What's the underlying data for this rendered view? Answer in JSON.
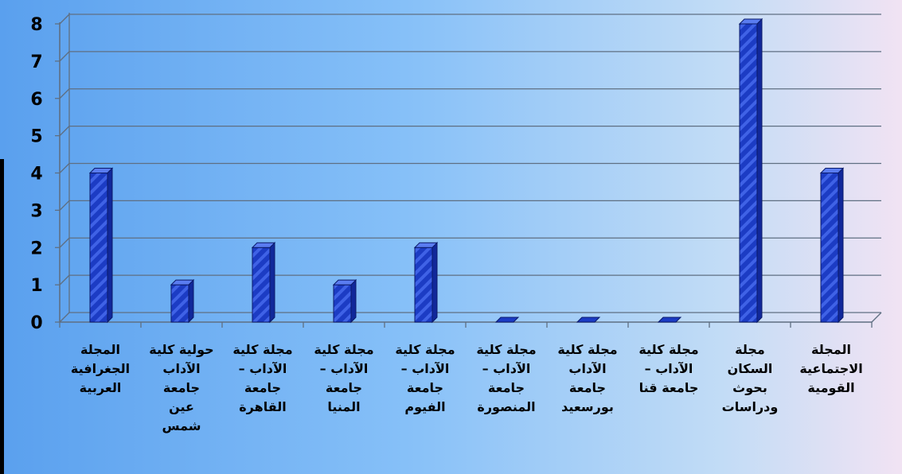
{
  "chart_data": {
    "type": "bar",
    "categories": [
      [
        "المجلة",
        "الجغرافية",
        "العربية"
      ],
      [
        "حولية كلية",
        "الآداب",
        "جامعة",
        "عين",
        "شمس"
      ],
      [
        "مجلة كلية",
        "الآداب –",
        "جامعة",
        "القاهرة"
      ],
      [
        "مجلة كلية",
        "الآداب –",
        "جامعة",
        "المنيا"
      ],
      [
        "مجلة كلية",
        "الآداب –",
        "جامعة",
        "الفيوم"
      ],
      [
        "مجلة كلية",
        "الآداب –",
        "جامعة",
        "المنصورة"
      ],
      [
        "مجلة كلية",
        "الآداب",
        "جامعة",
        "بورسعيد"
      ],
      [
        "مجلة كلية",
        "الآداب –",
        "جامعة قنا"
      ],
      [
        "مجلة",
        "السكان",
        "بحوث",
        "ودراسات"
      ],
      [
        "المجلة",
        "الاجتماعية",
        "القومية"
      ]
    ],
    "values": [
      4,
      1,
      2,
      1,
      2,
      0,
      0,
      0,
      8,
      4
    ],
    "yticks": [
      "0",
      "1",
      "2",
      "3",
      "4",
      "5",
      "6",
      "7",
      "8"
    ],
    "ylim": [
      0,
      8
    ],
    "grid": true,
    "bar_color": "#1f3fc8"
  }
}
